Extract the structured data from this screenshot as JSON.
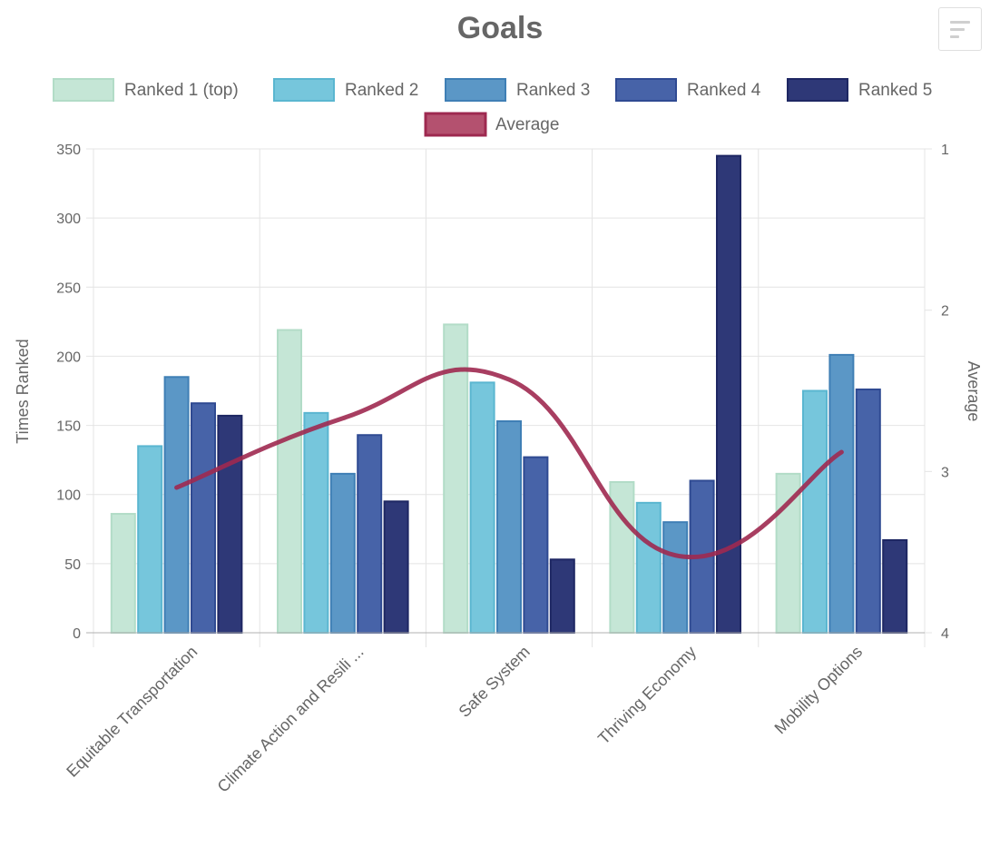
{
  "chart_data": {
    "type": "bar",
    "title": "Goals",
    "categories": [
      "Equitable Transportation",
      "Climate Action and Resili ...",
      "Safe System",
      "Thriving Economy",
      "Mobility Options"
    ],
    "series": [
      {
        "name": "Ranked 1 (top)",
        "type": "bar",
        "values": [
          86,
          219,
          223,
          109,
          115
        ],
        "fill": "#c5e6d6",
        "stroke": "#b2dcc7"
      },
      {
        "name": "Ranked 2",
        "type": "bar",
        "values": [
          135,
          159,
          181,
          94,
          175
        ],
        "fill": "#76c6dc",
        "stroke": "#5ab6d0"
      },
      {
        "name": "Ranked 3",
        "type": "bar",
        "values": [
          185,
          115,
          153,
          80,
          201
        ],
        "fill": "#5b97c6",
        "stroke": "#3f7fb5"
      },
      {
        "name": "Ranked 4",
        "type": "bar",
        "values": [
          166,
          143,
          127,
          110,
          176
        ],
        "fill": "#4763a8",
        "stroke": "#2f4a92"
      },
      {
        "name": "Ranked 5",
        "type": "bar",
        "values": [
          157,
          95,
          53,
          345,
          67
        ],
        "fill": "#2e3877",
        "stroke": "#1e2763"
      },
      {
        "name": "Average",
        "type": "line",
        "axis": "right",
        "values": [
          3.1,
          2.67,
          2.43,
          3.52,
          2.88
        ],
        "fill": "#b4516f",
        "stroke": "#9e2950"
      }
    ],
    "ylabel": "Times Ranked",
    "y2label": "Average",
    "ylim": [
      0,
      350
    ],
    "y2lim": [
      1,
      4
    ],
    "y2_reversed": true,
    "yticks": [
      "0",
      "50",
      "100",
      "150",
      "200",
      "250",
      "300",
      "350"
    ],
    "y2ticks": [
      "1",
      "2",
      "3",
      "4"
    ],
    "grid": true,
    "legend_position": "top",
    "colors": {
      "grid": "#e4e4e4",
      "axis_text": "#666666",
      "title": "#666666"
    }
  },
  "toolbar": {
    "menu_icon": "menu-icon"
  }
}
